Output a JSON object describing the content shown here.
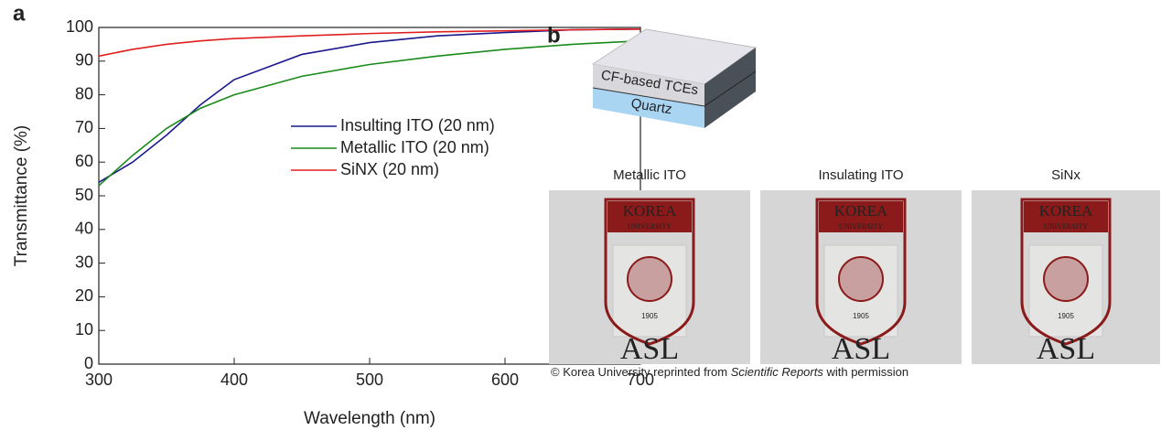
{
  "chart_data": {
    "type": "line",
    "panel_label": "a",
    "xlabel": "Wavelength (nm)",
    "ylabel": "Transmittance (%)",
    "x": [
      300,
      325,
      350,
      375,
      400,
      450,
      500,
      550,
      600,
      650,
      700
    ],
    "series": [
      {
        "name": "Insulting ITO (20 nm)",
        "color": "#1a1a8c",
        "values": [
          54,
          60,
          68,
          77,
          84.5,
          92,
          95.5,
          97.5,
          98.5,
          99.3,
          99.5
        ]
      },
      {
        "name": "Metallic ITO (20 nm)",
        "color": "#1a8a1a",
        "values": [
          53,
          62,
          70,
          76,
          80,
          85.5,
          89,
          91.5,
          93.5,
          95,
          96
        ]
      },
      {
        "name": "SiNX (20 nm)",
        "color": "#e02020",
        "values": [
          91.5,
          93.5,
          95,
          96,
          96.7,
          97.5,
          98.2,
          98.7,
          99,
          99.3,
          99.5
        ]
      }
    ],
    "xlim": [
      300,
      700
    ],
    "ylim": [
      0,
      100
    ],
    "xticks": [
      300,
      400,
      500,
      600,
      700
    ],
    "yticks": [
      0,
      10,
      20,
      30,
      40,
      50,
      60,
      70,
      80,
      90,
      100
    ]
  },
  "panel_b": {
    "panel_label": "b",
    "layers": [
      "CF-based TCEs",
      "Quartz"
    ],
    "photos": [
      "Metallic ITO",
      "Insulating ITO",
      "SiNx"
    ],
    "logo": {
      "top": "KOREA",
      "sub": "UNIVERSITY",
      "year": "1905",
      "bottom": "ASL"
    },
    "caption": {
      "before": "© Korea University reprinted from ",
      "italic": "Scientific Reports",
      "after": " with permission"
    }
  }
}
